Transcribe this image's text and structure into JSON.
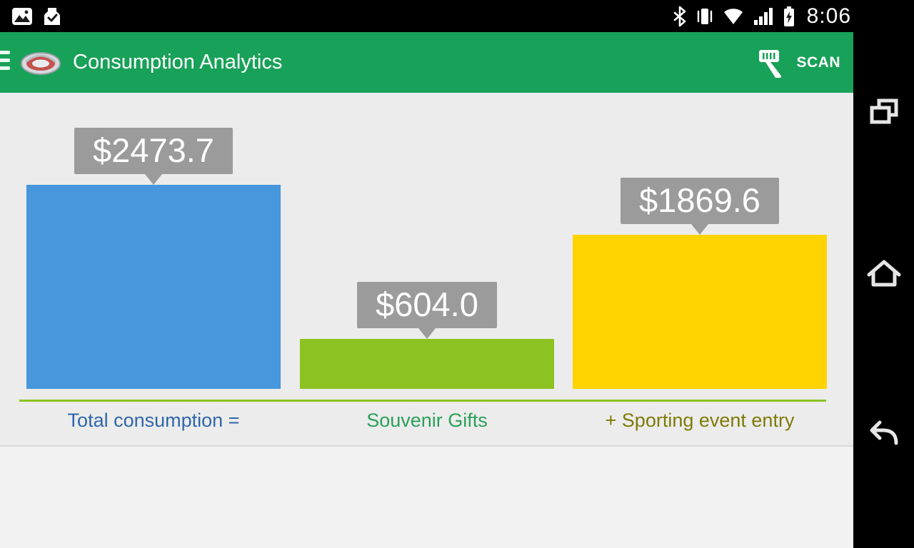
{
  "status_bar": {
    "time": "8:06",
    "icons_left": [
      "gallery-icon",
      "checked-bag-icon"
    ],
    "icons_right": [
      "bluetooth-icon",
      "vibrate-icon",
      "wifi-icon",
      "signal-icon",
      "battery-charging-icon"
    ]
  },
  "app_bar": {
    "title": "Consumption Analytics",
    "scan_label": "SCAN"
  },
  "chart_data": {
    "type": "bar",
    "title": "",
    "categories": [
      "Total consumption =",
      "Souvenir Gifts",
      "+ Sporting event entry"
    ],
    "values": [
      2473.7,
      604.0,
      1869.6
    ],
    "value_labels": [
      "$2473.7",
      "$604.0",
      "$1869.6"
    ],
    "bar_colors": [
      "#4697DC",
      "#8CC221",
      "#FFD300"
    ],
    "category_colors": [
      "#2F66AD",
      "#2BA05A",
      "#7E7A06"
    ],
    "max_value": 2473.7,
    "ylim": [
      0,
      2473.7
    ],
    "grid": false,
    "legend_position": "none"
  },
  "colors": {
    "app_bar_green": "#18A158",
    "label_bg": "#9B9B9B",
    "axis_line": "#8CC221",
    "content_bg": "#ECECEC",
    "nav_bg": "#000000"
  },
  "nav_bar": {
    "buttons": [
      "recents",
      "home",
      "back"
    ]
  }
}
